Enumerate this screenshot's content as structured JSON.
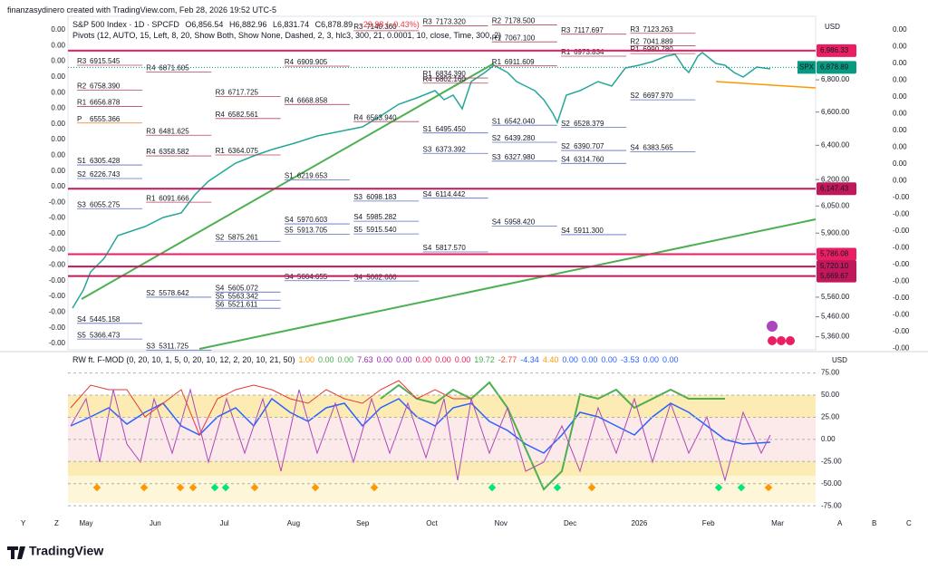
{
  "header": "finanzasydinero created with TradingView.com, Feb 28, 2026 19:52 UTC-5",
  "legend": {
    "symbol": "S&P 500 Index · 1D · SPCFD",
    "open": "O6,856.54",
    "high": "H6,882.96",
    "low": "L6,831.74",
    "close": "C6,878.89",
    "change": "−29.98 (−0.43%)"
  },
  "pivots_title": "Pivots (12, AUTO, 15, Left, 8, 20, Show Both, Show None, Dashed, 2, 3, hlc3, 300, 21, 0.0001, 10, close, Time, 300, 2)",
  "price_axis": {
    "currency": "USD",
    "log_scale": true,
    "ylim": [
      5300,
      7200
    ],
    "ticks": [
      {
        "value": 6800,
        "label": "6,800.00"
      },
      {
        "value": 6600,
        "label": "6,600.00"
      },
      {
        "value": 6400,
        "label": "6,400.00"
      },
      {
        "value": 6200,
        "label": "6,200.00"
      },
      {
        "value": 6050,
        "label": "6,050.00"
      },
      {
        "value": 5900,
        "label": "5,900.00"
      },
      {
        "value": 5560,
        "label": "5,560.00"
      },
      {
        "value": 5460,
        "label": "5,460.00"
      },
      {
        "value": 5360,
        "label": "5,360.00"
      }
    ]
  },
  "price_tags": [
    {
      "value": 6986.33,
      "label": "6,986.33",
      "color": "#e91e63"
    },
    {
      "value": 6147.43,
      "label": "6,147.43",
      "color": "#c2185b"
    },
    {
      "value": 5786.08,
      "label": "5,786.08",
      "color": "#e91e63"
    },
    {
      "value": 5720.1,
      "label": "5,720.10",
      "color": "#c2185b"
    },
    {
      "value": 5669.67,
      "label": "5,669.67",
      "color": "#c2185b"
    }
  ],
  "last_price": {
    "symbol": "SPX",
    "value": 6878.89,
    "label": "6,878.89",
    "color": "#089981"
  },
  "left_scale": [
    "0.00",
    "0.00",
    "0.00",
    "0.00",
    "0.00",
    "0.00",
    "0.00",
    "0.00",
    "0.00",
    "0.00",
    "0.00",
    "-0.00",
    "-0.00",
    "-0.00",
    "-0.00",
    "-0.00",
    "-0.00",
    "-0.00",
    "-0.00",
    "-0.00",
    "-0.00"
  ],
  "right_scale": [
    "0.00",
    "0.00",
    "0.00",
    "0.00",
    "0.00",
    "0.00",
    "0.00",
    "0.00",
    "0.00",
    "0.00",
    "-0.00",
    "-0.00",
    "-0.00",
    "-0.00",
    "-0.00",
    "-0.00",
    "-0.00",
    "-0.00",
    "-0.00",
    "-0.00"
  ],
  "pivot_colors": {
    "R": "#b5475b",
    "P": "#e67e22",
    "S": "#5c6bc0"
  },
  "pivots": [
    {
      "month": "May",
      "levels": [
        {
          "tag": "R3",
          "label": "6915.545"
        },
        {
          "tag": "R2",
          "label": "6758.390"
        },
        {
          "tag": "R1",
          "label": "6656.878"
        },
        {
          "tag": "P",
          "label": "6555.366"
        },
        {
          "tag": "S1",
          "label": "6305.428"
        },
        {
          "tag": "S2",
          "label": "6226.743"
        },
        {
          "tag": "S3",
          "label": "6055.275"
        },
        {
          "tag": "S4",
          "label": "5445.158"
        },
        {
          "tag": "S5",
          "label": "5366.473"
        }
      ]
    },
    {
      "month": "Jun",
      "levels": [
        {
          "tag": "R4",
          "label": "6871.605"
        },
        {
          "tag": "R3",
          "label": "6481.625"
        },
        {
          "tag": "R4",
          "label": "6358.582"
        },
        {
          "tag": "R1",
          "label": "6091.666"
        },
        {
          "tag": "S2",
          "label": "5578.642"
        },
        {
          "tag": "S3",
          "label": "5311.725"
        }
      ]
    },
    {
      "month": "Jul",
      "levels": [
        {
          "tag": "R3",
          "label": "6717.725"
        },
        {
          "tag": "R4",
          "label": "6582.561"
        },
        {
          "tag": "R1",
          "label": "6364.075"
        },
        {
          "tag": "S2",
          "label": "5875.261"
        },
        {
          "tag": "S4",
          "label": "5605.072"
        },
        {
          "tag": "S5",
          "label": "5563.342"
        },
        {
          "tag": "S6",
          "label": "5521.611"
        }
      ]
    },
    {
      "month": "Aug",
      "levels": [
        {
          "tag": "R4",
          "label": "6909.905"
        },
        {
          "tag": "R4",
          "label": "6668.858"
        },
        {
          "tag": "S1",
          "label": "6219.653"
        },
        {
          "tag": "S4",
          "label": "5970.603"
        },
        {
          "tag": "S5",
          "label": "5913.705"
        },
        {
          "tag": "S4",
          "label": "5664.655"
        }
      ]
    },
    {
      "month": "Sep",
      "levels": [
        {
          "tag": "R3",
          "label": "7140.360"
        },
        {
          "tag": "R4",
          "label": "6563.940"
        },
        {
          "tag": "S3",
          "label": "6098.183"
        },
        {
          "tag": "S4",
          "label": "5985.282"
        },
        {
          "tag": "S5",
          "label": "5915.540"
        },
        {
          "tag": "S4",
          "label": "5662.660"
        }
      ]
    },
    {
      "month": "Oct",
      "levels": [
        {
          "tag": "R3",
          "label": "7173.320"
        },
        {
          "tag": "R1",
          "label": "6834.390"
        },
        {
          "tag": "R4",
          "label": "6802.160"
        },
        {
          "tag": "S1",
          "label": "6495.450"
        },
        {
          "tag": "S3",
          "label": "6373.392"
        },
        {
          "tag": "S4",
          "label": "6114.442"
        },
        {
          "tag": "S4",
          "label": "5817.570"
        }
      ]
    },
    {
      "month": "Nov",
      "levels": [
        {
          "tag": "R2",
          "label": "7178.500"
        },
        {
          "tag": "R1",
          "label": "7067.100"
        },
        {
          "tag": "R1",
          "label": "6911.609"
        },
        {
          "tag": "S1",
          "label": "6542.040"
        },
        {
          "tag": "S2",
          "label": "6439.280"
        },
        {
          "tag": "S3",
          "label": "6327.980"
        },
        {
          "tag": "S4",
          "label": "5958.420"
        }
      ]
    },
    {
      "month": "Dec",
      "levels": [
        {
          "tag": "R3",
          "label": "7117.697"
        },
        {
          "tag": "R1",
          "label": "6973.834"
        },
        {
          "tag": "S2",
          "label": "6528.379"
        },
        {
          "tag": "S2",
          "label": "6390.707"
        },
        {
          "tag": "S4",
          "label": "6314.760"
        },
        {
          "tag": "S4",
          "label": "5911.300"
        }
      ]
    },
    {
      "month": "2026",
      "levels": [
        {
          "tag": "R3",
          "label": "7123.263"
        },
        {
          "tag": "R2",
          "label": "7041.889"
        },
        {
          "tag": "R1",
          "label": "6990.780"
        },
        {
          "tag": "S2",
          "label": "6697.970"
        },
        {
          "tag": "S4",
          "label": "6383.565"
        }
      ]
    }
  ],
  "indicator": {
    "title": "RW ft. F-MOD (0, 20, 10, 1, 5, 0, 20, 10, 12, 2, 20, 10, 21, 50)",
    "values": [
      {
        "text": "1.00",
        "color": "#ff9800"
      },
      {
        "text": "0.00",
        "color": "#4caf50"
      },
      {
        "text": "0.00",
        "color": "#4caf50"
      },
      {
        "text": "7.63",
        "color": "#9c27b0"
      },
      {
        "text": "0.00",
        "color": "#9c27b0"
      },
      {
        "text": "0.00",
        "color": "#9c27b0"
      },
      {
        "text": "0.00",
        "color": "#e91e63"
      },
      {
        "text": "0.00",
        "color": "#e91e63"
      },
      {
        "text": "0.00",
        "color": "#e91e63"
      },
      {
        "text": "19.72",
        "color": "#4caf50"
      },
      {
        "text": "-2.77",
        "color": "#f44336"
      },
      {
        "text": "-4.34",
        "color": "#2962ff"
      },
      {
        "text": "4.40",
        "color": "#ff9800"
      },
      {
        "text": "0.00",
        "color": "#2962ff"
      },
      {
        "text": "0.00",
        "color": "#2962ff"
      },
      {
        "text": "0.00",
        "color": "#2962ff"
      },
      {
        "text": "-3.53",
        "color": "#2962ff"
      },
      {
        "text": "0.00",
        "color": "#2962ff"
      },
      {
        "text": "0.00",
        "color": "#2962ff"
      }
    ],
    "currency": "USD",
    "ylim": [
      -82,
      92
    ],
    "ticks": [
      {
        "value": 75,
        "label": "75.00"
      },
      {
        "value": 50,
        "label": "50.00"
      },
      {
        "value": 25,
        "label": "25.00"
      },
      {
        "value": 0,
        "label": "0.00"
      },
      {
        "value": -25,
        "label": "-25.00"
      },
      {
        "value": -50,
        "label": "-50.00"
      },
      {
        "value": -75,
        "label": "-75.00"
      }
    ]
  },
  "time_axis": [
    "May",
    "Jun",
    "Jul",
    "Aug",
    "Sep",
    "Oct",
    "Nov",
    "Dec",
    "2026",
    "Feb",
    "Mar"
  ],
  "toolbar": {
    "left": [
      "Y",
      "Z"
    ],
    "right": [
      "A",
      "B",
      "C"
    ]
  },
  "brand": "TradingView"
}
